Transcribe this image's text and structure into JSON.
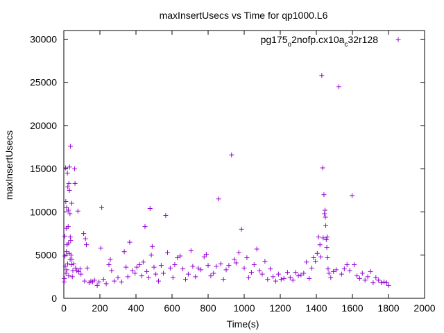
{
  "chart_data": {
    "type": "scatter",
    "title": "maxInsertUsecs vs Time for qp1000.L6",
    "xlabel": "Time(s)",
    "ylabel": "maxInsertUsecs",
    "xlim": [
      0,
      2000
    ],
    "ylim": [
      0,
      31000
    ],
    "xticks": [
      0,
      200,
      400,
      600,
      800,
      1000,
      1200,
      1400,
      1600,
      1800,
      2000
    ],
    "yticks": [
      0,
      5000,
      10000,
      15000,
      20000,
      25000,
      30000
    ],
    "grid": false,
    "legend_position": "top-right",
    "marker": "plus",
    "color": "#9400d3",
    "series": [
      {
        "name_parts": [
          "pg175",
          "o",
          "2nofp.cx10a",
          "c",
          "32r128"
        ],
        "points": [
          [
            2,
            1900
          ],
          [
            3,
            2300
          ],
          [
            5,
            7200
          ],
          [
            6,
            4900
          ],
          [
            8,
            3700
          ],
          [
            10,
            15100
          ],
          [
            11,
            11200
          ],
          [
            12,
            2900
          ],
          [
            13,
            8100
          ],
          [
            14,
            5400
          ],
          [
            16,
            10500
          ],
          [
            17,
            3300
          ],
          [
            18,
            6200
          ],
          [
            20,
            14500
          ],
          [
            21,
            4000
          ],
          [
            22,
            12900
          ],
          [
            24,
            8300
          ],
          [
            25,
            10200
          ],
          [
            26,
            6400
          ],
          [
            27,
            2600
          ],
          [
            28,
            13300
          ],
          [
            30,
            5200
          ],
          [
            31,
            12500
          ],
          [
            32,
            15200
          ],
          [
            34,
            9800
          ],
          [
            35,
            4500
          ],
          [
            36,
            7100
          ],
          [
            37,
            17600
          ],
          [
            38,
            6700
          ],
          [
            40,
            5000
          ],
          [
            42,
            3900
          ],
          [
            44,
            11000
          ],
          [
            45,
            4500
          ],
          [
            47,
            2500
          ],
          [
            50,
            3200
          ],
          [
            55,
            4000
          ],
          [
            60,
            15000
          ],
          [
            62,
            13300
          ],
          [
            65,
            3500
          ],
          [
            72,
            3200
          ],
          [
            78,
            10100
          ],
          [
            82,
            3100
          ],
          [
            90,
            3400
          ],
          [
            95,
            2800
          ],
          [
            110,
            7500
          ],
          [
            115,
            2000
          ],
          [
            120,
            6900
          ],
          [
            125,
            6200
          ],
          [
            130,
            3500
          ],
          [
            140,
            1800
          ],
          [
            150,
            2000
          ],
          [
            160,
            1900
          ],
          [
            170,
            2100
          ],
          [
            185,
            1500
          ],
          [
            195,
            1900
          ],
          [
            210,
            10500
          ],
          [
            205,
            5800
          ],
          [
            220,
            2200
          ],
          [
            235,
            1700
          ],
          [
            250,
            3900
          ],
          [
            258,
            4500
          ],
          [
            265,
            3200
          ],
          [
            280,
            2000
          ],
          [
            300,
            2400
          ],
          [
            320,
            1900
          ],
          [
            335,
            5400
          ],
          [
            345,
            3600
          ],
          [
            355,
            2500
          ],
          [
            365,
            6500
          ],
          [
            380,
            3200
          ],
          [
            395,
            2900
          ],
          [
            405,
            3600
          ],
          [
            420,
            3900
          ],
          [
            432,
            2600
          ],
          [
            440,
            4200
          ],
          [
            450,
            8300
          ],
          [
            460,
            3100
          ],
          [
            470,
            2400
          ],
          [
            478,
            10400
          ],
          [
            485,
            5000
          ],
          [
            490,
            6000
          ],
          [
            500,
            3600
          ],
          [
            510,
            2800
          ],
          [
            525,
            2000
          ],
          [
            540,
            3800
          ],
          [
            552,
            2900
          ],
          [
            565,
            9600
          ],
          [
            575,
            5300
          ],
          [
            590,
            3500
          ],
          [
            605,
            2400
          ],
          [
            615,
            3900
          ],
          [
            630,
            4700
          ],
          [
            645,
            4900
          ],
          [
            660,
            3400
          ],
          [
            675,
            2200
          ],
          [
            690,
            2800
          ],
          [
            705,
            5500
          ],
          [
            715,
            3700
          ],
          [
            730,
            2500
          ],
          [
            745,
            3500
          ],
          [
            760,
            3300
          ],
          [
            778,
            4800
          ],
          [
            790,
            5100
          ],
          [
            800,
            3800
          ],
          [
            815,
            2600
          ],
          [
            830,
            2900
          ],
          [
            845,
            3700
          ],
          [
            858,
            11500
          ],
          [
            870,
            4000
          ],
          [
            885,
            2200
          ],
          [
            900,
            3300
          ],
          [
            915,
            3800
          ],
          [
            930,
            16600
          ],
          [
            945,
            4500
          ],
          [
            955,
            4100
          ],
          [
            970,
            5300
          ],
          [
            985,
            8000
          ],
          [
            1000,
            3500
          ],
          [
            1015,
            4700
          ],
          [
            1025,
            2400
          ],
          [
            1040,
            3000
          ],
          [
            1055,
            3900
          ],
          [
            1070,
            5700
          ],
          [
            1085,
            3200
          ],
          [
            1100,
            2800
          ],
          [
            1115,
            4300
          ],
          [
            1130,
            2200
          ],
          [
            1145,
            3400
          ],
          [
            1160,
            2500
          ],
          [
            1175,
            2000
          ],
          [
            1190,
            2800
          ],
          [
            1205,
            2200
          ],
          [
            1220,
            2300
          ],
          [
            1240,
            3000
          ],
          [
            1255,
            2400
          ],
          [
            1270,
            2100
          ],
          [
            1285,
            3000
          ],
          [
            1300,
            2600
          ],
          [
            1315,
            2700
          ],
          [
            1330,
            2900
          ],
          [
            1345,
            4200
          ],
          [
            1360,
            2300
          ],
          [
            1375,
            3500
          ],
          [
            1385,
            4700
          ],
          [
            1395,
            4300
          ],
          [
            1405,
            5200
          ],
          [
            1412,
            7100
          ],
          [
            1420,
            6200
          ],
          [
            1425,
            4800
          ],
          [
            1430,
            25800
          ],
          [
            1435,
            15100
          ],
          [
            1438,
            7000
          ],
          [
            1442,
            12000
          ],
          [
            1445,
            9800
          ],
          [
            1448,
            10200
          ],
          [
            1450,
            9400
          ],
          [
            1452,
            8400
          ],
          [
            1455,
            6800
          ],
          [
            1458,
            5900
          ],
          [
            1460,
            7100
          ],
          [
            1462,
            4700
          ],
          [
            1465,
            3400
          ],
          [
            1470,
            2900
          ],
          [
            1480,
            2400
          ],
          [
            1495,
            3100
          ],
          [
            1510,
            3300
          ],
          [
            1525,
            24500
          ],
          [
            1540,
            2800
          ],
          [
            1555,
            3400
          ],
          [
            1570,
            3900
          ],
          [
            1585,
            3200
          ],
          [
            1598,
            11900
          ],
          [
            1610,
            3900
          ],
          [
            1625,
            2600
          ],
          [
            1640,
            2300
          ],
          [
            1655,
            2900
          ],
          [
            1670,
            2100
          ],
          [
            1685,
            2500
          ],
          [
            1700,
            3100
          ],
          [
            1715,
            1800
          ],
          [
            1730,
            2400
          ],
          [
            1745,
            2100
          ],
          [
            1760,
            1800
          ],
          [
            1775,
            1900
          ],
          [
            1790,
            1800
          ],
          [
            1800,
            1500
          ]
        ]
      }
    ]
  }
}
